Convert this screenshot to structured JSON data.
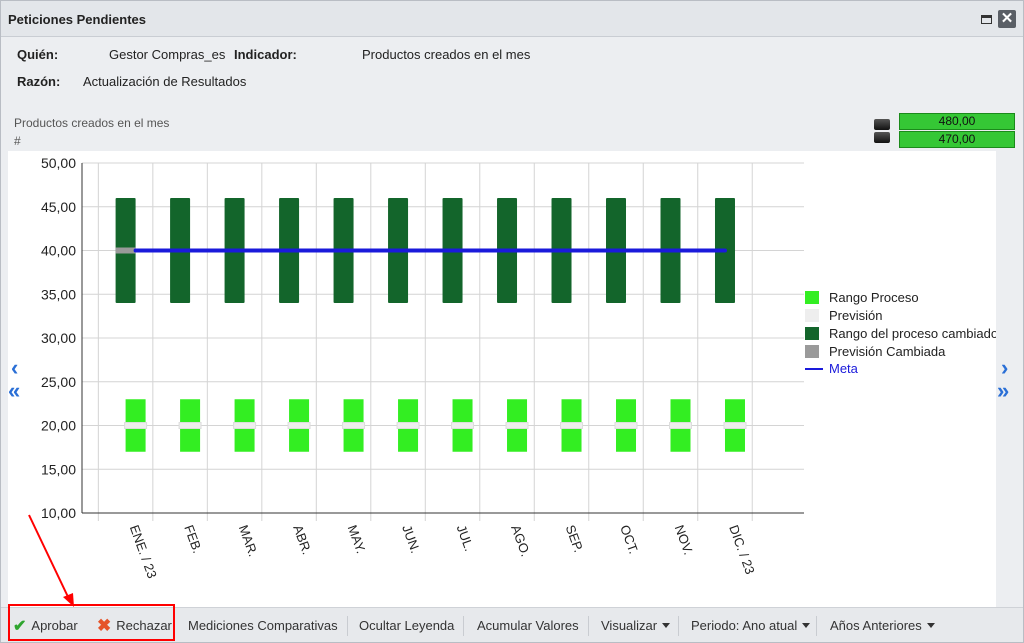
{
  "window": {
    "title": "Peticiones Pendientes"
  },
  "info": {
    "who_label": "Quién:",
    "who_value": "Gestor Compras_es",
    "indicator_label": "Indicador:",
    "indicator_value": "Productos creados en el mes",
    "reason_label": "Razón:",
    "reason_value": "Actualización de Resultados"
  },
  "chart_header": {
    "title": "Productos creados en el mes",
    "unit": "#",
    "values": [
      "480,00",
      "470,00"
    ],
    "value_color": "#35c735"
  },
  "chart_data": {
    "type": "bar",
    "categories": [
      "ENE. / 23",
      "FEB.",
      "MAR.",
      "ABR.",
      "MAY.",
      "JUN.",
      "JUL.",
      "AGO.",
      "SEP.",
      "OCT.",
      "NOV.",
      "DIC. / 23"
    ],
    "ylim": [
      10,
      50
    ],
    "y_ticks": [
      "10,00",
      "15,00",
      "20,00",
      "25,00",
      "30,00",
      "35,00",
      "40,00",
      "45,00",
      "50,00"
    ],
    "series": [
      {
        "name": "Rango Proceso",
        "color": "#33ee22",
        "low": [
          17,
          17,
          17,
          17,
          17,
          17,
          17,
          17,
          17,
          17,
          17,
          17
        ],
        "high": [
          23,
          23,
          23,
          23,
          23,
          23,
          23,
          23,
          23,
          23,
          23,
          23
        ]
      },
      {
        "name": "Previsión",
        "color": "#eeeeee",
        "values": [
          20,
          20,
          20,
          20,
          20,
          20,
          20,
          20,
          20,
          20,
          20,
          20
        ]
      },
      {
        "name": "Rango del proceso cambiado",
        "color": "#13652b",
        "low": [
          34,
          34,
          34,
          34,
          34,
          34,
          34,
          34,
          34,
          34,
          34,
          34
        ],
        "high": [
          46,
          46,
          46,
          46,
          46,
          46,
          46,
          46,
          46,
          46,
          46,
          46
        ]
      },
      {
        "name": "Previsión Cambiada",
        "color": "#9a9a9a",
        "values": [
          40,
          40,
          40,
          40,
          40,
          40,
          40,
          40,
          40,
          40,
          40,
          40
        ]
      },
      {
        "name": "Meta",
        "color": "#1a1adb",
        "values": [
          40,
          40,
          40,
          40,
          40,
          40,
          40,
          40,
          40,
          40,
          40,
          40
        ]
      }
    ],
    "legend_position": "right",
    "grid": true
  },
  "toolbar": {
    "approve": "Aprobar",
    "reject": "Rechazar",
    "compare": "Mediciones Comparativas",
    "hide_legend": "Ocultar Leyenda",
    "accumulate": "Acumular Valores",
    "visualize": "Visualizar",
    "period": "Periodo: Ano atual",
    "previous_years": "Años Anteriores"
  }
}
